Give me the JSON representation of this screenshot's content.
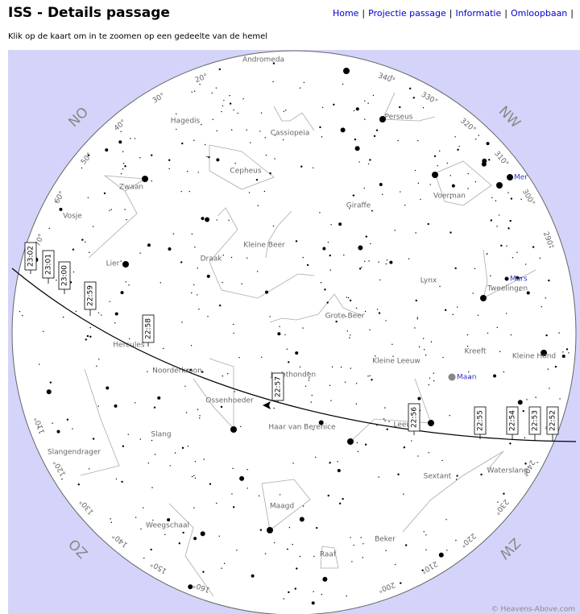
{
  "header": {
    "title": "ISS - Details passage",
    "nav": [
      "Home",
      "Projectie passage",
      "Informatie",
      "Omloopbaan"
    ],
    "separator": "|"
  },
  "instruction": "Klik op de kaart om in te zoomen op een gedeelte van de hemel",
  "sky_map": {
    "directions": [
      "NO",
      "NW",
      "ZO",
      "ZW"
    ],
    "azimuth_labels": [
      "20°",
      "30°",
      "40°",
      "50°",
      "60°",
      "70°",
      "110°",
      "120°",
      "130°",
      "140°",
      "150°",
      "160°",
      "200°",
      "210°",
      "220°",
      "230°",
      "240°",
      "250°",
      "290°",
      "300°",
      "310°",
      "320°",
      "330°",
      "340°"
    ],
    "constellations": [
      "Andromeda",
      "Hagedis",
      "Cassiopeia",
      "Perseus",
      "Cepheus",
      "Zwaan",
      "Voerman",
      "Giraffe",
      "Vosje",
      "Kleine Beer",
      "Draak",
      "Lier",
      "Lynx",
      "Tweelingen",
      "Grote Beer",
      "Hercules",
      "Kreeft",
      "Kleine Hond",
      "Kleine Leeuw",
      "Noorderkroon",
      "Jachthonden",
      "Ossenhoeder",
      "Leeuw",
      "Haar van Berenice",
      "Slang",
      "Slangendrager",
      "Waterslang",
      "Sextant",
      "Maagd",
      "Weegschaal",
      "Beker",
      "Raaf"
    ],
    "planets": [
      "Mer",
      "Mars",
      "Maan"
    ],
    "pass_times": [
      "23:02",
      "23:01",
      "23:00",
      "22:59",
      "22:58",
      "22:57",
      "22:56",
      "22:55",
      "22:54",
      "22:53",
      "22:52"
    ],
    "credit": "© Heavens-Above.com"
  }
}
